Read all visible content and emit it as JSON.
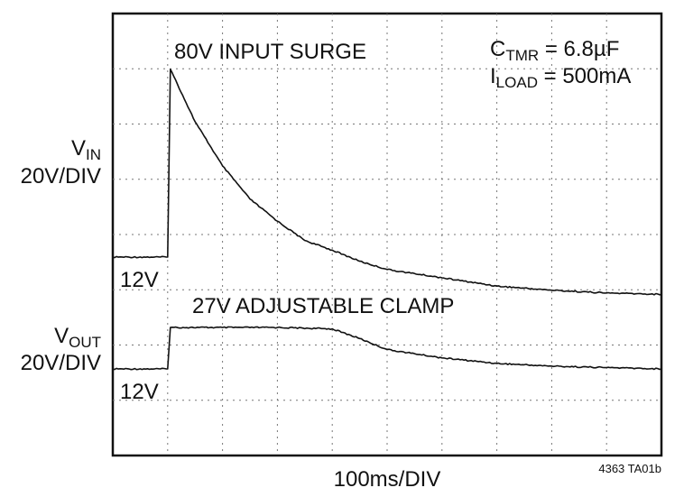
{
  "chart_data": {
    "type": "line",
    "annotations": {
      "vin_label": "V",
      "vin_sub": "IN",
      "vin_scale": "20V/DIV",
      "vout_label": "V",
      "vout_sub": "OUT",
      "vout_scale": "20V/DIV",
      "vin_baseline": "12V",
      "vout_baseline": "12V",
      "surge": "80V INPUT SURGE",
      "clamp": "27V ADJUSTABLE CLAMP",
      "ctmr_c": "C",
      "ctmr_sub": "TMR",
      "ctmr_val": " = 6.8µF",
      "iload_i": "I",
      "iload_sub": "LOAD",
      "iload_val": " = 500mA"
    },
    "xlabel": "100ms/DIV",
    "figure_id": "4363 TA01b",
    "x_divisions": 10,
    "y_divisions": 8,
    "grid": true,
    "series": [
      {
        "trace": "VIN",
        "color": "#111111",
        "x": [
          0,
          1.0,
          1.05,
          1.5,
          2.0,
          2.5,
          3.0,
          3.5,
          4.0,
          4.5,
          5.0,
          6.0,
          7.0,
          8.0,
          9.0,
          10.0
        ],
        "y": [
          12,
          12,
          80,
          61,
          45,
          33,
          25,
          18,
          14.5,
          10.5,
          7.5,
          4.5,
          1.5,
          0,
          -1,
          -1.5
        ]
      },
      {
        "trace": "VOUT",
        "color": "#111111",
        "x": [
          0,
          1.0,
          1.05,
          2.0,
          3.0,
          4.0,
          4.5,
          5.0,
          6.0,
          7.0,
          8.0,
          9.0,
          10.0
        ],
        "y": [
          12,
          12,
          27,
          27,
          27,
          26.5,
          23,
          19,
          16,
          14,
          13,
          12.5,
          12
        ]
      }
    ]
  }
}
